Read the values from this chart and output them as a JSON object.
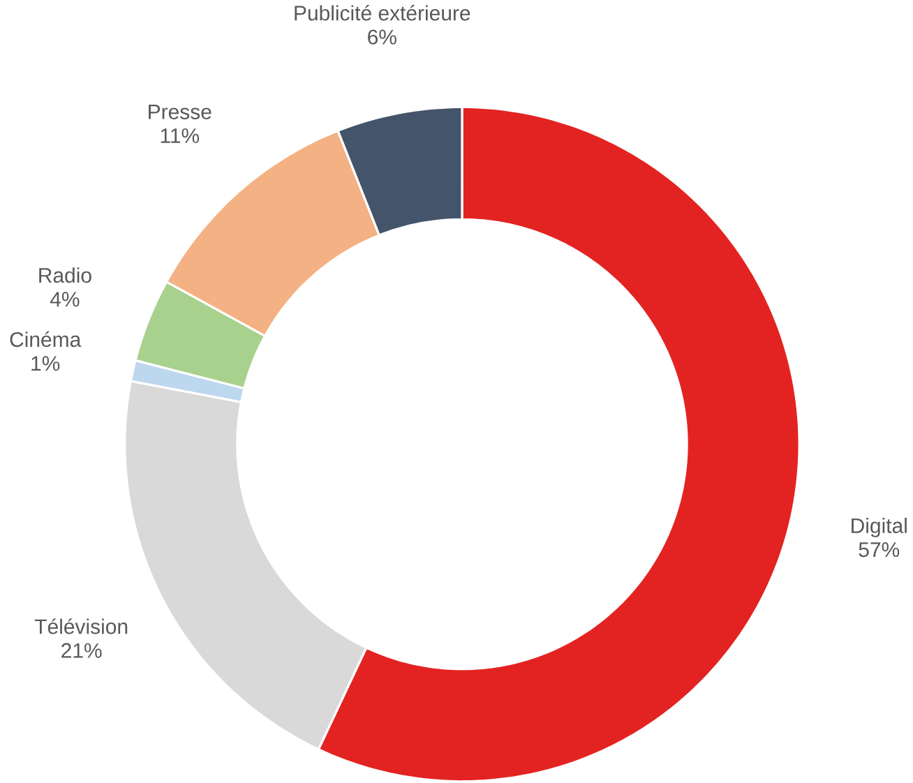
{
  "chart_data": {
    "type": "donut",
    "categories": [
      "Digital",
      "Télévision",
      "Cinéma",
      "Radio",
      "Presse",
      "Publicité extérieure"
    ],
    "values": [
      57,
      21,
      1,
      4,
      11,
      6
    ],
    "value_labels": [
      "57%",
      "21%",
      "1%",
      "4%",
      "11%",
      "6%"
    ],
    "colors": [
      "#e32322",
      "#d9d9d9",
      "#bdd7ee",
      "#a9d18e",
      "#f4b183",
      "#44546a"
    ]
  }
}
